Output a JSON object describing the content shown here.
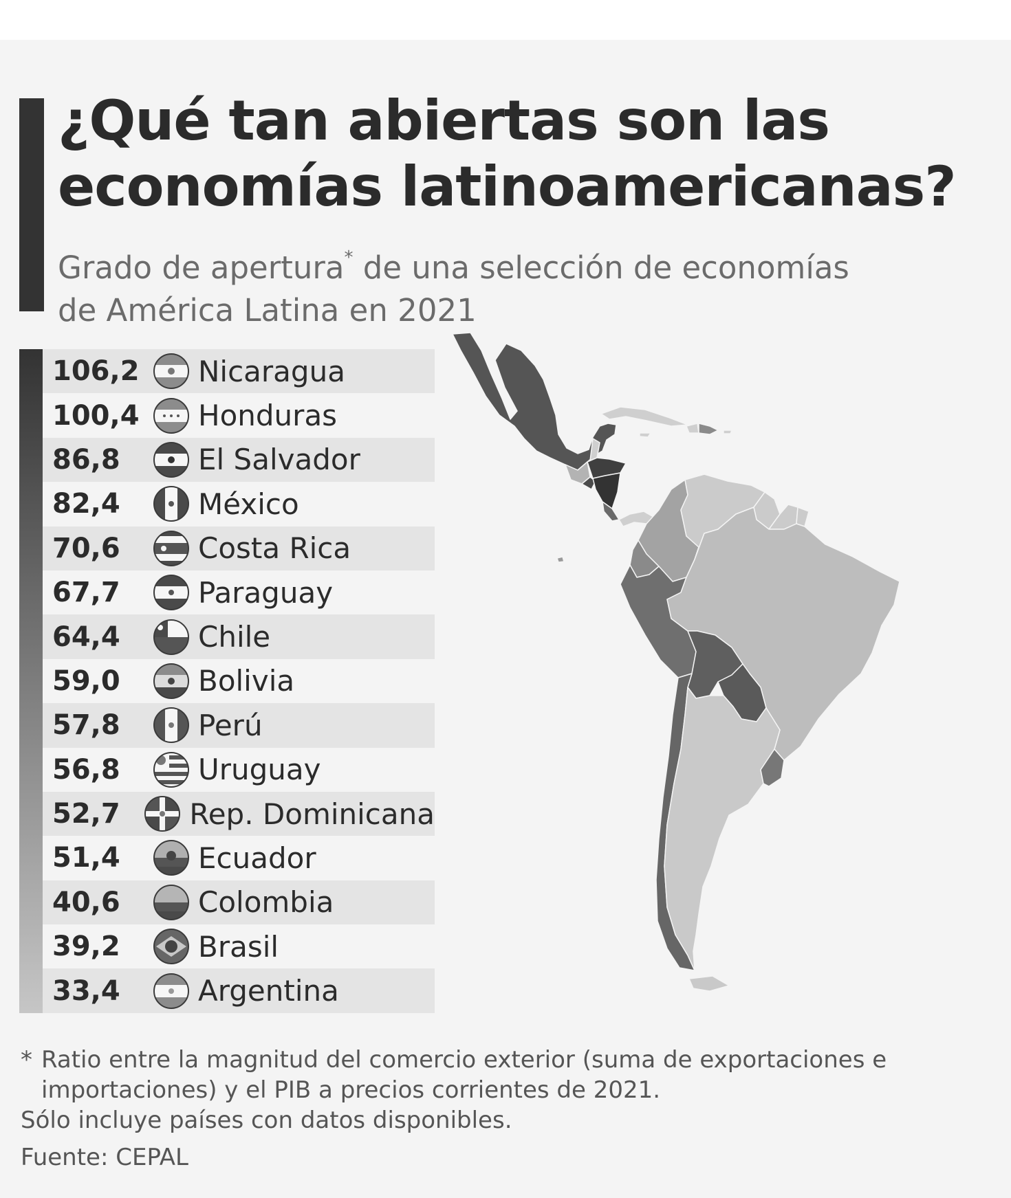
{
  "title": {
    "line1": "¿Qué tan abiertas son las",
    "line2": "economías latinoamericanas?"
  },
  "subtitle": {
    "line1_pre": "Grado de apertura",
    "line1_sup": "*",
    "line1_post": " de una selección de economías",
    "line2": "de América Latina en 2021"
  },
  "colors": {
    "dark": "#333333",
    "light": "#c6c6c6",
    "row_alt": "#e4e4e4"
  },
  "chart_data": {
    "type": "table",
    "title": "¿Qué tan abiertas son las economías latinoamericanas?",
    "categories": [
      "Nicaragua",
      "Honduras",
      "El Salvador",
      "México",
      "Costa Rica",
      "Paraguay",
      "Chile",
      "Bolivia",
      "Perú",
      "Uruguay",
      "Rep. Dominicana",
      "Ecuador",
      "Colombia",
      "Brasil",
      "Argentina"
    ],
    "values": [
      106.2,
      100.4,
      86.8,
      82.4,
      70.6,
      67.7,
      64.4,
      59.0,
      57.8,
      56.8,
      52.7,
      51.4,
      40.6,
      39.2,
      33.4
    ],
    "rows": [
      {
        "value": "106,2",
        "country": "Nicaragua",
        "flag_icon": "nicaragua-flag-icon"
      },
      {
        "value": "100,4",
        "country": "Honduras",
        "flag_icon": "honduras-flag-icon"
      },
      {
        "value": "86,8",
        "country": "El Salvador",
        "flag_icon": "el-salvador-flag-icon"
      },
      {
        "value": "82,4",
        "country": "México",
        "flag_icon": "mexico-flag-icon"
      },
      {
        "value": "70,6",
        "country": "Costa Rica",
        "flag_icon": "costa-rica-flag-icon"
      },
      {
        "value": "67,7",
        "country": "Paraguay",
        "flag_icon": "paraguay-flag-icon"
      },
      {
        "value": "64,4",
        "country": "Chile",
        "flag_icon": "chile-flag-icon"
      },
      {
        "value": "59,0",
        "country": "Bolivia",
        "flag_icon": "bolivia-flag-icon"
      },
      {
        "value": "57,8",
        "country": "Perú",
        "flag_icon": "peru-flag-icon"
      },
      {
        "value": "56,8",
        "country": "Uruguay",
        "flag_icon": "uruguay-flag-icon"
      },
      {
        "value": "52,7",
        "country": "Rep. Dominicana",
        "flag_icon": "dominican-republic-flag-icon"
      },
      {
        "value": "51,4",
        "country": "Ecuador",
        "flag_icon": "ecuador-flag-icon"
      },
      {
        "value": "40,6",
        "country": "Colombia",
        "flag_icon": "colombia-flag-icon"
      },
      {
        "value": "39,2",
        "country": "Brasil",
        "flag_icon": "brazil-flag-icon"
      },
      {
        "value": "33,4",
        "country": "Argentina",
        "flag_icon": "argentina-flag-icon"
      }
    ]
  },
  "footnote": {
    "star": "*",
    "line1": "Ratio entre la magnitud del comercio exterior (suma de exportaciones e",
    "line2": "importaciones) y el PIB a precios corrientes de 2021.",
    "line3": "Sólo incluye países con datos disponibles."
  },
  "source": "Fuente: CEPAL"
}
